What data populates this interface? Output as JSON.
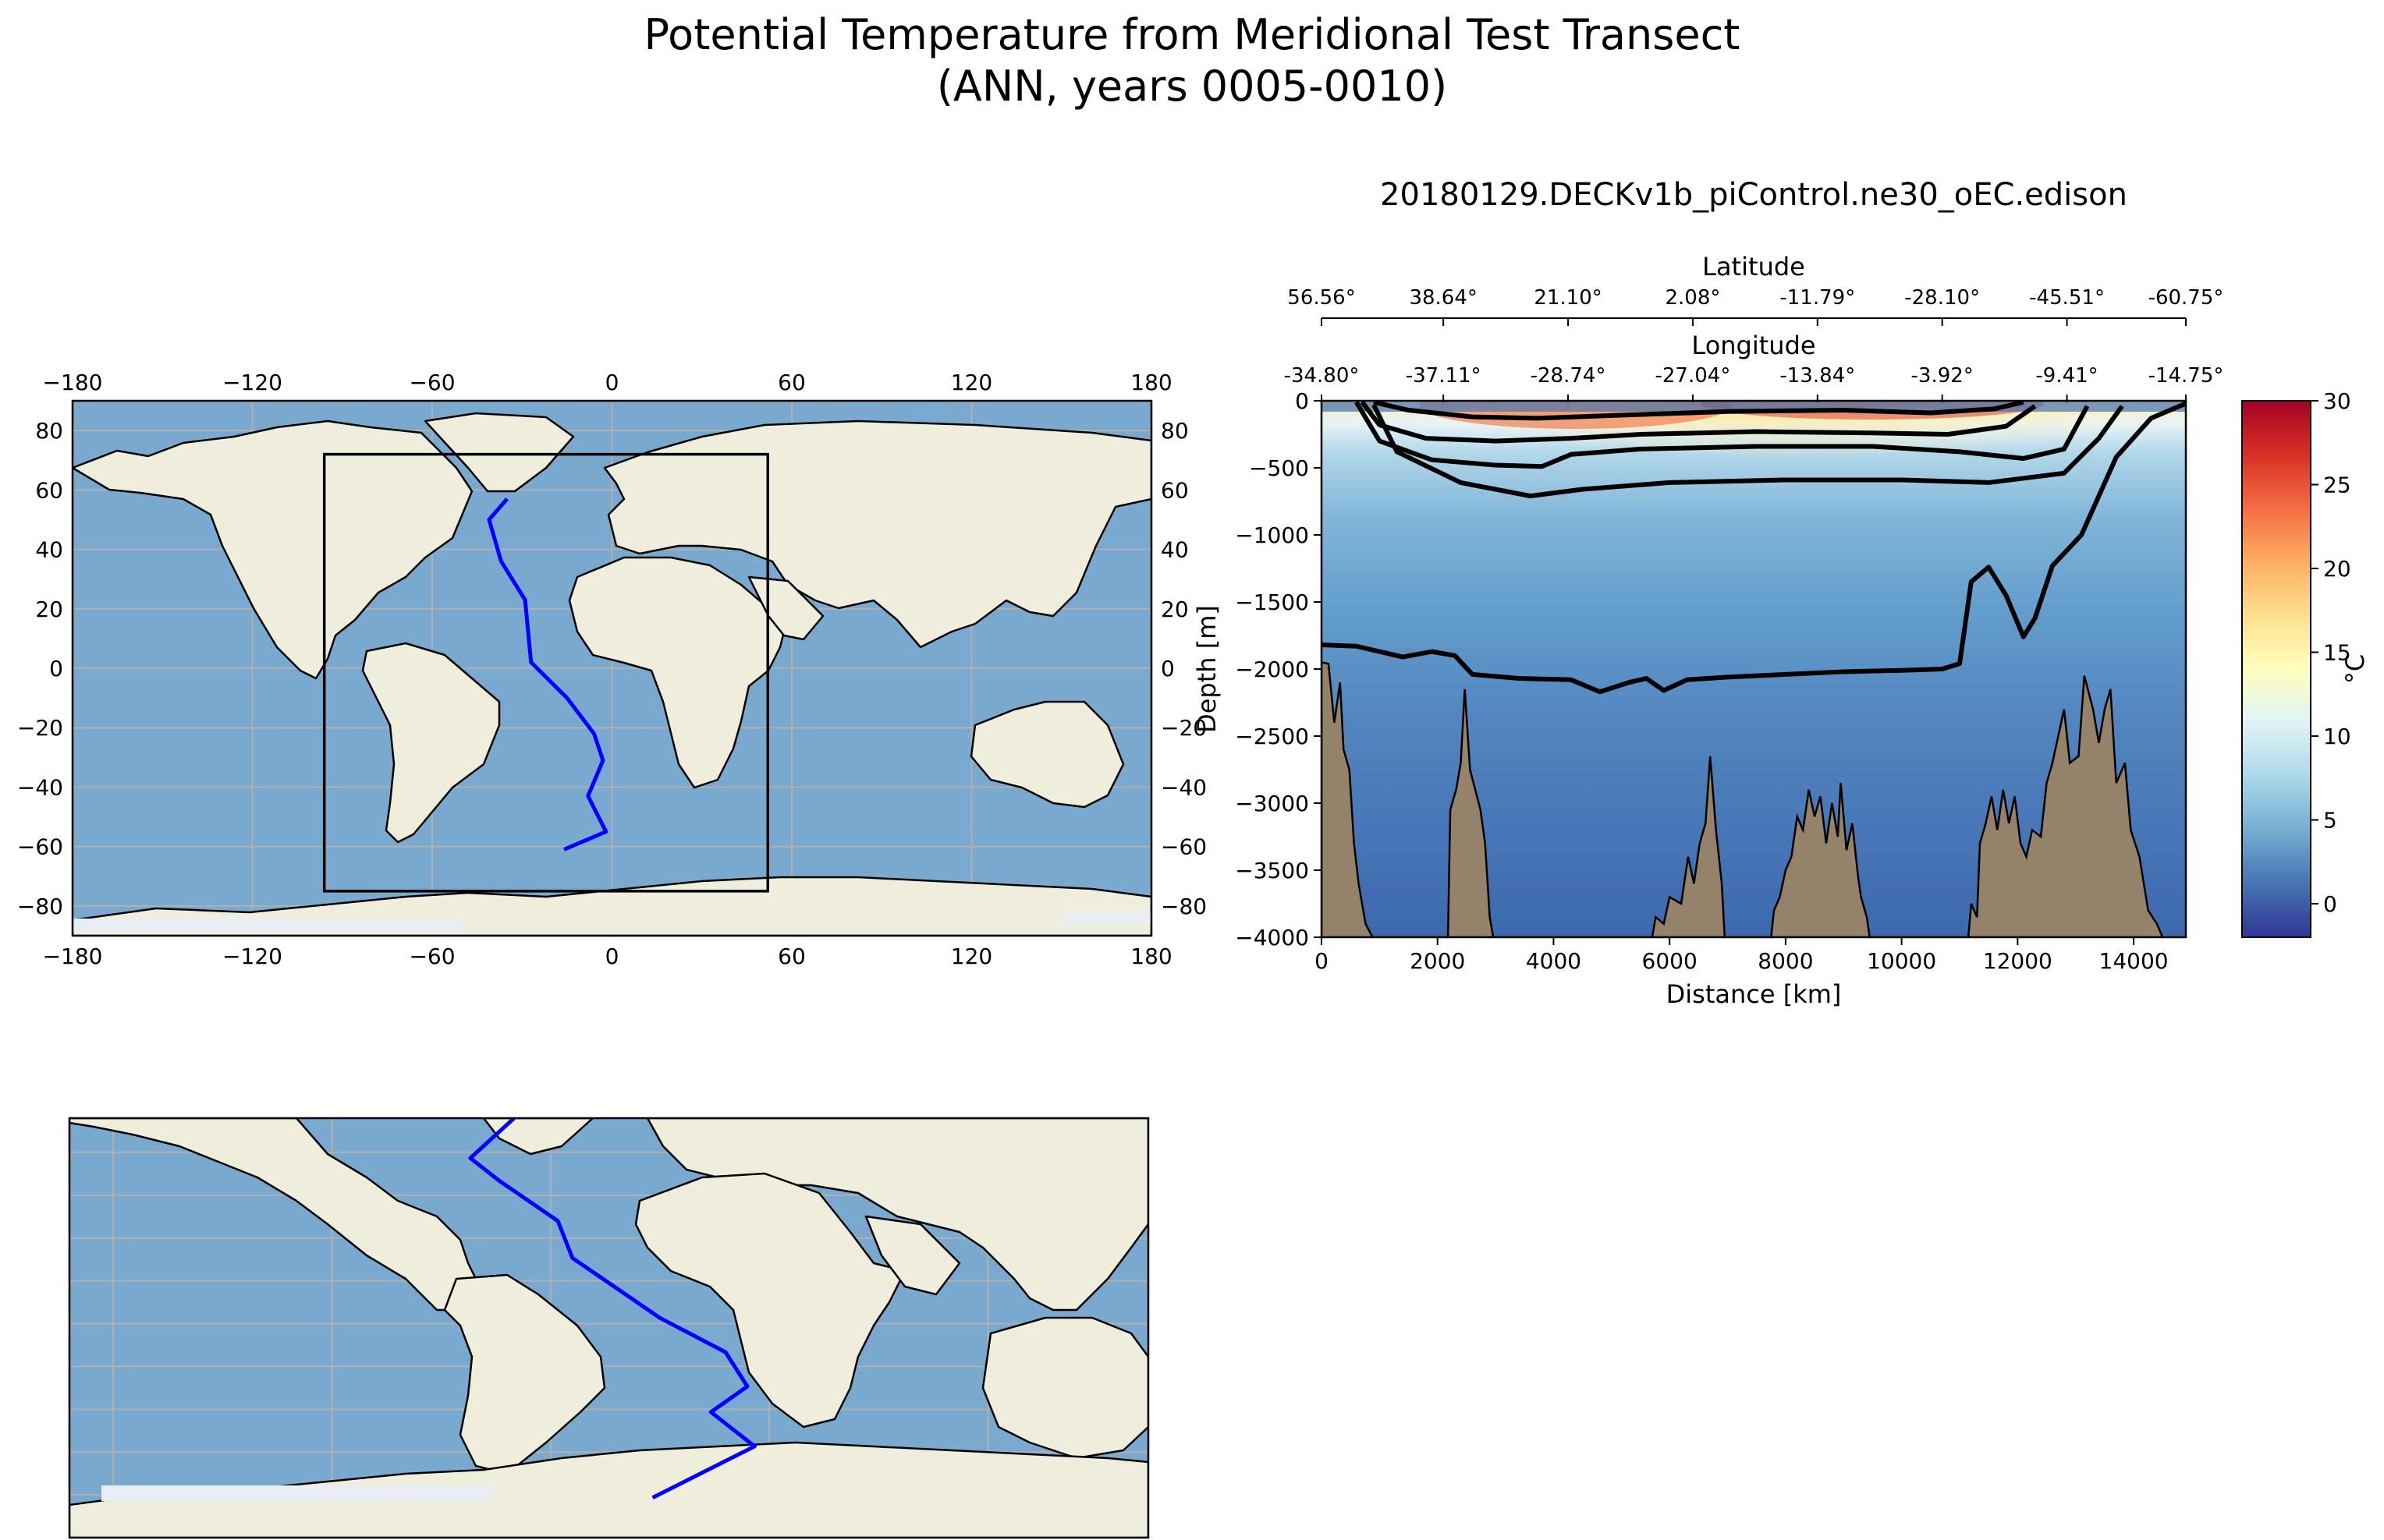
{
  "figure": {
    "title_line1": "Potential Temperature from Meridional Test Transect",
    "title_line2": "(ANN, years 0005-0010)"
  },
  "colors": {
    "ocean": "#7aa9cf",
    "land": "#efeddc",
    "coast": "#000000",
    "transect": "#0000ff",
    "grid": "#b0b0b0",
    "bathymetry": "#95826a",
    "ice": "#e8eef3"
  },
  "chart_data": [
    {
      "type": "map",
      "name": "global-map",
      "projection": "PlateCarree",
      "xlim": [
        -180,
        180
      ],
      "ylim": [
        -90,
        90
      ],
      "xticks": [
        -180,
        -120,
        -60,
        0,
        60,
        120,
        180
      ],
      "yticks": [
        -80,
        -60,
        -40,
        -20,
        0,
        20,
        40,
        60,
        80
      ],
      "xtick_labels": [
        "−180",
        "−120",
        "−60",
        "0",
        "60",
        "120",
        "180"
      ],
      "ytick_labels": [
        "−80",
        "−60",
        "−40",
        "−20",
        "0",
        "20",
        "40",
        "60",
        "80"
      ],
      "grid": true,
      "extent_box": {
        "lon": [
          -96,
          52
        ],
        "lat": [
          -75,
          72
        ]
      },
      "transect": [
        [
          -35,
          57
        ],
        [
          -41,
          50
        ],
        [
          -37,
          36
        ],
        [
          -29,
          23
        ],
        [
          -27,
          2
        ],
        [
          -15,
          -10
        ],
        [
          -6,
          -22
        ],
        [
          -3,
          -31
        ],
        [
          -8,
          -43
        ],
        [
          -2,
          -55
        ],
        [
          -16,
          -61
        ]
      ]
    },
    {
      "type": "map",
      "name": "zoomed-map",
      "projection": "PlateCarree",
      "xlim": [
        -96,
        52
      ],
      "ylim": [
        -75,
        72
      ],
      "grid_lons": [
        -90,
        -60,
        -30,
        0,
        30
      ],
      "grid_lats": [
        -60,
        -45,
        -30,
        -15,
        0,
        15,
        30,
        45,
        60
      ],
      "grid": true,
      "transect": [
        [
          -35,
          72
        ],
        [
          -41,
          58
        ],
        [
          -37,
          50
        ],
        [
          -29,
          36
        ],
        [
          -27,
          23
        ],
        [
          -15,
          2
        ],
        [
          -6,
          -10
        ],
        [
          -3,
          -22
        ],
        [
          -8,
          -31
        ],
        [
          -2,
          -43
        ],
        [
          -16,
          -61
        ]
      ]
    },
    {
      "type": "heatmap",
      "name": "transect-section",
      "title": "20180129.DECKv1b_piControl.ne30_oEC.edison",
      "xlabel": "Distance [km]",
      "ylabel": "Depth [m]",
      "xlim": [
        0,
        14900
      ],
      "ylim": [
        -4000,
        0
      ],
      "xticks": [
        0,
        2000,
        4000,
        6000,
        8000,
        10000,
        12000,
        14000
      ],
      "yticks": [
        0,
        -500,
        -1000,
        -1500,
        -2000,
        -2500,
        -3000,
        -3500,
        -4000
      ],
      "ytick_labels": [
        "0",
        "−500",
        "−1000",
        "−1500",
        "−2000",
        "−2500",
        "−3000",
        "−3500",
        "−4000"
      ],
      "top_axis_1": {
        "label": "Latitude",
        "ticks": [
          0,
          2100,
          4250,
          6400,
          8550,
          10700,
          12850,
          14900
        ],
        "labels": [
          "56.56°",
          "38.64°",
          "21.10°",
          "2.08°",
          "-11.79°",
          "-28.10°",
          "-45.51°",
          "-60.75°"
        ]
      },
      "top_axis_2": {
        "label": "Longitude",
        "ticks": [
          0,
          2100,
          4250,
          6400,
          8550,
          10700,
          12850,
          14900
        ],
        "labels": [
          "-34.80°",
          "-37.11°",
          "-28.74°",
          "-27.04°",
          "-13.84°",
          "-3.92°",
          "-9.41°",
          "-14.75°"
        ]
      },
      "colorbar": {
        "label": "°C",
        "vmin": -2,
        "vmax": 30,
        "ticks": [
          0,
          5,
          10,
          15,
          20,
          25,
          30
        ],
        "colormap": "RdYlBu_r"
      },
      "contours": [
        {
          "level": 20,
          "points": [
            [
              900,
              -10
            ],
            [
              1500,
              -70
            ],
            [
              2600,
              -120
            ],
            [
              3700,
              -130
            ],
            [
              5000,
              -110
            ],
            [
              7000,
              -80
            ],
            [
              9000,
              -70
            ],
            [
              10500,
              -90
            ],
            [
              11600,
              -60
            ],
            [
              12100,
              -10
            ]
          ]
        },
        {
          "level": 15,
          "points": [
            [
              700,
              -10
            ],
            [
              1000,
              -180
            ],
            [
              1800,
              -280
            ],
            [
              3000,
              -300
            ],
            [
              4300,
              -280
            ],
            [
              5500,
              -250
            ],
            [
              7500,
              -230
            ],
            [
              9500,
              -240
            ],
            [
              10800,
              -250
            ],
            [
              11800,
              -190
            ],
            [
              12300,
              -40
            ]
          ]
        },
        {
          "level": 10,
          "points": [
            [
              600,
              -10
            ],
            [
              1000,
              -300
            ],
            [
              1900,
              -440
            ],
            [
              3000,
              -480
            ],
            [
              3800,
              -490
            ],
            [
              4300,
              -400
            ],
            [
              5500,
              -360
            ],
            [
              7500,
              -340
            ],
            [
              9500,
              -340
            ],
            [
              11000,
              -380
            ],
            [
              12100,
              -430
            ],
            [
              12800,
              -360
            ],
            [
              13200,
              -40
            ]
          ]
        },
        {
          "level": 8,
          "points": [
            [
              900,
              -30
            ],
            [
              1300,
              -380
            ],
            [
              2400,
              -610
            ],
            [
              3600,
              -710
            ],
            [
              4500,
              -660
            ],
            [
              6000,
              -610
            ],
            [
              8000,
              -590
            ],
            [
              10000,
              -590
            ],
            [
              11500,
              -610
            ],
            [
              12800,
              -540
            ],
            [
              13400,
              -280
            ],
            [
              13800,
              -40
            ]
          ]
        },
        {
          "level": 4,
          "points": [
            [
              0,
              -1820
            ],
            [
              600,
              -1830
            ],
            [
              1400,
              -1910
            ],
            [
              1900,
              -1870
            ],
            [
              2300,
              -1900
            ],
            [
              2600,
              -2040
            ],
            [
              3400,
              -2070
            ],
            [
              4300,
              -2080
            ],
            [
              4800,
              -2170
            ],
            [
              5300,
              -2100
            ],
            [
              5600,
              -2070
            ],
            [
              5900,
              -2160
            ],
            [
              6300,
              -2080
            ],
            [
              7000,
              -2060
            ],
            [
              8000,
              -2040
            ],
            [
              9000,
              -2020
            ],
            [
              10000,
              -2010
            ],
            [
              10700,
              -2000
            ],
            [
              11000,
              -1960
            ],
            [
              11200,
              -1350
            ],
            [
              11500,
              -1240
            ],
            [
              11800,
              -1450
            ],
            [
              12100,
              -1760
            ],
            [
              12300,
              -1620
            ],
            [
              12600,
              -1230
            ],
            [
              13100,
              -1000
            ],
            [
              13700,
              -420
            ],
            [
              14300,
              -130
            ],
            [
              14900,
              -20
            ]
          ]
        }
      ],
      "bathymetry_depth": [
        [
          0,
          -1950
        ],
        [
          120,
          -1960
        ],
        [
          220,
          -2400
        ],
        [
          320,
          -2100
        ],
        [
          380,
          -2600
        ],
        [
          480,
          -2750
        ],
        [
          560,
          -3300
        ],
        [
          640,
          -3600
        ],
        [
          760,
          -3900
        ],
        [
          880,
          -4000
        ],
        [
          2180,
          -4000
        ],
        [
          2220,
          -3050
        ],
        [
          2320,
          -2900
        ],
        [
          2400,
          -2700
        ],
        [
          2470,
          -2150
        ],
        [
          2560,
          -2750
        ],
        [
          2650,
          -2900
        ],
        [
          2740,
          -3050
        ],
        [
          2820,
          -3300
        ],
        [
          2900,
          -3850
        ],
        [
          2960,
          -4000
        ],
        [
          5700,
          -4000
        ],
        [
          5760,
          -3850
        ],
        [
          5900,
          -3900
        ],
        [
          6000,
          -3700
        ],
        [
          6200,
          -3750
        ],
        [
          6320,
          -3400
        ],
        [
          6420,
          -3600
        ],
        [
          6520,
          -3300
        ],
        [
          6620,
          -3150
        ],
        [
          6700,
          -2650
        ],
        [
          6800,
          -3200
        ],
        [
          6900,
          -3600
        ],
        [
          6950,
          -4000
        ],
        [
          7750,
          -4000
        ],
        [
          7800,
          -3800
        ],
        [
          7900,
          -3700
        ],
        [
          8000,
          -3500
        ],
        [
          8100,
          -3400
        ],
        [
          8200,
          -3100
        ],
        [
          8300,
          -3200
        ],
        [
          8400,
          -2900
        ],
        [
          8500,
          -3100
        ],
        [
          8600,
          -2950
        ],
        [
          8700,
          -3300
        ],
        [
          8800,
          -3000
        ],
        [
          8900,
          -3250
        ],
        [
          8950,
          -2850
        ],
        [
          9050,
          -3350
        ],
        [
          9150,
          -3150
        ],
        [
          9250,
          -3550
        ],
        [
          9300,
          -3700
        ],
        [
          9400,
          -3850
        ],
        [
          9450,
          -4000
        ],
        [
          11150,
          -4000
        ],
        [
          11200,
          -3750
        ],
        [
          11300,
          -3850
        ],
        [
          11350,
          -3300
        ],
        [
          11450,
          -3150
        ],
        [
          11550,
          -2950
        ],
        [
          11650,
          -3200
        ],
        [
          11750,
          -2900
        ],
        [
          11850,
          -3150
        ],
        [
          11950,
          -2950
        ],
        [
          12050,
          -3300
        ],
        [
          12150,
          -3400
        ],
        [
          12250,
          -3200
        ],
        [
          12400,
          -3250
        ],
        [
          12500,
          -2850
        ],
        [
          12600,
          -2700
        ],
        [
          12700,
          -2500
        ],
        [
          12800,
          -2300
        ],
        [
          12900,
          -2700
        ],
        [
          13050,
          -2650
        ],
        [
          13150,
          -2050
        ],
        [
          13300,
          -2300
        ],
        [
          13400,
          -2550
        ],
        [
          13500,
          -2300
        ],
        [
          13600,
          -2150
        ],
        [
          13700,
          -2850
        ],
        [
          13850,
          -2700
        ],
        [
          13950,
          -3200
        ],
        [
          14100,
          -3400
        ],
        [
          14250,
          -3800
        ],
        [
          14400,
          -3900
        ],
        [
          14500,
          -4000
        ]
      ]
    }
  ]
}
